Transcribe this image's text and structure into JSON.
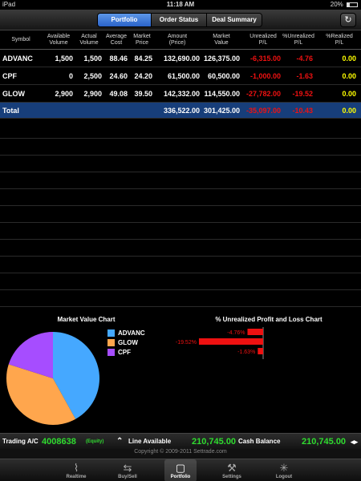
{
  "status_bar": {
    "device": "iPad",
    "time": "11:18 AM",
    "battery": "20%"
  },
  "nav": {
    "tabs": [
      {
        "label": "Portfolio",
        "active": true
      },
      {
        "label": "Order Status",
        "active": false
      },
      {
        "label": "Deal Summary",
        "active": false
      }
    ],
    "refresh_icon": "refresh-icon"
  },
  "table": {
    "headers": {
      "symbol": "Symbol",
      "available_volume": [
        "Available",
        "Volume"
      ],
      "actual_volume": [
        "Actual",
        "Volume"
      ],
      "average_cost": [
        "Average",
        "Cost"
      ],
      "market_price": [
        "Market",
        "Price"
      ],
      "amount_price": [
        "Amount",
        "(Price)"
      ],
      "market_value": [
        "Market",
        "Value"
      ],
      "unrealized_pl": [
        "Unrealized",
        "P/L"
      ],
      "pct_unrealized_pl": [
        "%Unrealized",
        "P/L"
      ],
      "pct_realized_pl": [
        "%Realized",
        "P/L"
      ]
    },
    "rows": [
      {
        "symbol": "ADVANC",
        "available_volume": "1,500",
        "actual_volume": "1,500",
        "average_cost": "88.46",
        "market_price": "84.25",
        "amount_price": "132,690.00",
        "market_value": "126,375.00",
        "unrealized_pl": "-6,315.00",
        "pct_unrealized_pl": "-4.76",
        "pct_realized_pl": "0.00"
      },
      {
        "symbol": "CPF",
        "available_volume": "0",
        "actual_volume": "2,500",
        "average_cost": "24.60",
        "market_price": "24.20",
        "amount_price": "61,500.00",
        "market_value": "60,500.00",
        "unrealized_pl": "-1,000.00",
        "pct_unrealized_pl": "-1.63",
        "pct_realized_pl": "0.00"
      },
      {
        "symbol": "GLOW",
        "available_volume": "2,900",
        "actual_volume": "2,900",
        "average_cost": "49.08",
        "market_price": "39.50",
        "amount_price": "142,332.00",
        "market_value": "114,550.00",
        "unrealized_pl": "-27,782.00",
        "pct_unrealized_pl": "-19.52",
        "pct_realized_pl": "0.00"
      }
    ],
    "total": {
      "label": "Total",
      "amount_price": "336,522.00",
      "market_value": "301,425.00",
      "unrealized_pl": "-35,097.00",
      "pct_unrealized_pl": "-10.43",
      "pct_realized_pl": "0.00"
    }
  },
  "chart_data": [
    {
      "type": "pie",
      "title": "Market Value Chart",
      "categories": [
        "ADVANC",
        "GLOW",
        "CPF"
      ],
      "values": [
        126375,
        114550,
        60500
      ],
      "colors": [
        "#45a8ff",
        "#ffa64d",
        "#a64dff"
      ]
    },
    {
      "type": "bar",
      "orientation": "horizontal",
      "title": "% Unrealized Profit and Loss Chart",
      "categories": [
        "ADVANC",
        "GLOW",
        "CPF"
      ],
      "values": [
        -4.76,
        -19.52,
        -1.63
      ],
      "value_labels": [
        "-4.76%",
        "-19.52%",
        "-1.63%"
      ],
      "color": "#e11"
    }
  ],
  "account_bar": {
    "trading_label": "Trading A/C",
    "account_number": "4008638",
    "account_type": "(Equity)",
    "line_label": "Line Available",
    "line_value": "210,745.00",
    "cash_label": "Cash Balance",
    "cash_value": "210,745.00"
  },
  "copyright": "Copyright © 2009-2011 Settrade.com",
  "tab_bar": [
    {
      "label": "Realtime",
      "icon": "chart-line-icon",
      "active": false
    },
    {
      "label": "Buy/Sell",
      "icon": "buy-sell-icon",
      "active": false
    },
    {
      "label": "Portfolio",
      "icon": "folder-icon",
      "active": true
    },
    {
      "label": "Settings",
      "icon": "wrench-icon",
      "active": false
    },
    {
      "label": "Logout",
      "icon": "logout-icon",
      "active": false
    }
  ],
  "colors": {
    "accent": "#2a63c9",
    "total_row": "#173e7a",
    "negative": "#e11",
    "zero": "#ff0",
    "account_value": "#2fdc2f"
  }
}
